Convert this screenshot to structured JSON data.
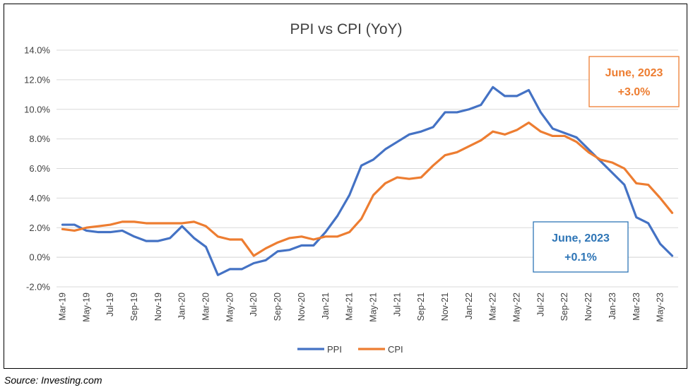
{
  "chart_data": {
    "type": "line",
    "title": "PPI vs CPI (YoY)",
    "xlabel": "",
    "ylabel": "",
    "ylim": [
      -2.0,
      14.0
    ],
    "yticks": [
      "14.0%",
      "12.0%",
      "10.0%",
      "8.0%",
      "6.0%",
      "4.0%",
      "2.0%",
      "0.0%",
      "-2.0%"
    ],
    "ytick_values": [
      14,
      12,
      10,
      8,
      6,
      4,
      2,
      0,
      -2
    ],
    "x": [
      "Mar-19",
      "Apr-19",
      "May-19",
      "Jun-19",
      "Jul-19",
      "Aug-19",
      "Sep-19",
      "Oct-19",
      "Nov-19",
      "Dec-19",
      "Jan-20",
      "Feb-20",
      "Mar-20",
      "Apr-20",
      "May-20",
      "Jun-20",
      "Jul-20",
      "Aug-20",
      "Sep-20",
      "Oct-20",
      "Nov-20",
      "Dec-20",
      "Jan-21",
      "Feb-21",
      "Mar-21",
      "Apr-21",
      "May-21",
      "Jun-21",
      "Jul-21",
      "Aug-21",
      "Sep-21",
      "Oct-21",
      "Nov-21",
      "Dec-21",
      "Jan-22",
      "Feb-22",
      "Mar-22",
      "Apr-22",
      "May-22",
      "Jun-22",
      "Jul-22",
      "Aug-22",
      "Sep-22",
      "Oct-22",
      "Nov-22",
      "Dec-22",
      "Jan-23",
      "Feb-23",
      "Mar-23",
      "Apr-23",
      "May-23",
      "Jun-23"
    ],
    "xtick_labels": [
      "Mar-19",
      "May-19",
      "Jul-19",
      "Sep-19",
      "Nov-19",
      "Jan-20",
      "Mar-20",
      "May-20",
      "Jul-20",
      "Sep-20",
      "Nov-20",
      "Jan-21",
      "Mar-21",
      "May-21",
      "Jul-21",
      "Sep-21",
      "Nov-21",
      "Jan-22",
      "Mar-22",
      "May-22",
      "Jul-22",
      "Sep-22",
      "Nov-22",
      "Jan-23",
      "Mar-23",
      "May-23"
    ],
    "series": [
      {
        "name": "PPI",
        "color": "#4472C4",
        "values": [
          2.2,
          2.2,
          1.8,
          1.7,
          1.7,
          1.8,
          1.4,
          1.1,
          1.1,
          1.3,
          2.1,
          1.3,
          0.7,
          -1.2,
          -0.8,
          -0.8,
          -0.4,
          -0.2,
          0.4,
          0.5,
          0.8,
          0.8,
          1.7,
          2.8,
          4.2,
          6.2,
          6.6,
          7.3,
          7.8,
          8.3,
          8.5,
          8.8,
          9.8,
          9.8,
          10.0,
          10.3,
          11.5,
          10.9,
          10.9,
          11.3,
          9.8,
          8.7,
          8.4,
          8.1,
          7.3,
          6.5,
          5.7,
          4.9,
          2.7,
          2.3,
          0.9,
          0.1
        ]
      },
      {
        "name": "CPI",
        "color": "#ED7D31",
        "values": [
          1.9,
          1.8,
          2.0,
          2.1,
          2.2,
          2.4,
          2.4,
          2.3,
          2.3,
          2.3,
          2.3,
          2.4,
          2.1,
          1.4,
          1.2,
          1.2,
          0.1,
          0.6,
          1.0,
          1.3,
          1.4,
          1.2,
          1.4,
          1.4,
          1.7,
          2.6,
          4.2,
          5.0,
          5.4,
          5.3,
          5.4,
          6.2,
          6.9,
          7.1,
          7.5,
          7.9,
          8.5,
          8.3,
          8.6,
          9.1,
          8.5,
          8.2,
          8.2,
          7.8,
          7.1,
          6.6,
          6.4,
          6.0,
          5.0,
          4.9,
          4.0,
          3.0
        ]
      }
    ],
    "legend": "bottom-center",
    "grid": true,
    "annotations": [
      {
        "series": "CPI",
        "line1": "June, 2023",
        "line2": "+3.0%",
        "color": "#ED7D31",
        "placement": "top-right"
      },
      {
        "series": "PPI",
        "line1": "June, 2023",
        "line2": "+0.1%",
        "color": "#2E75B6",
        "placement": "right"
      }
    ]
  },
  "source": "Source:  Investing.com"
}
